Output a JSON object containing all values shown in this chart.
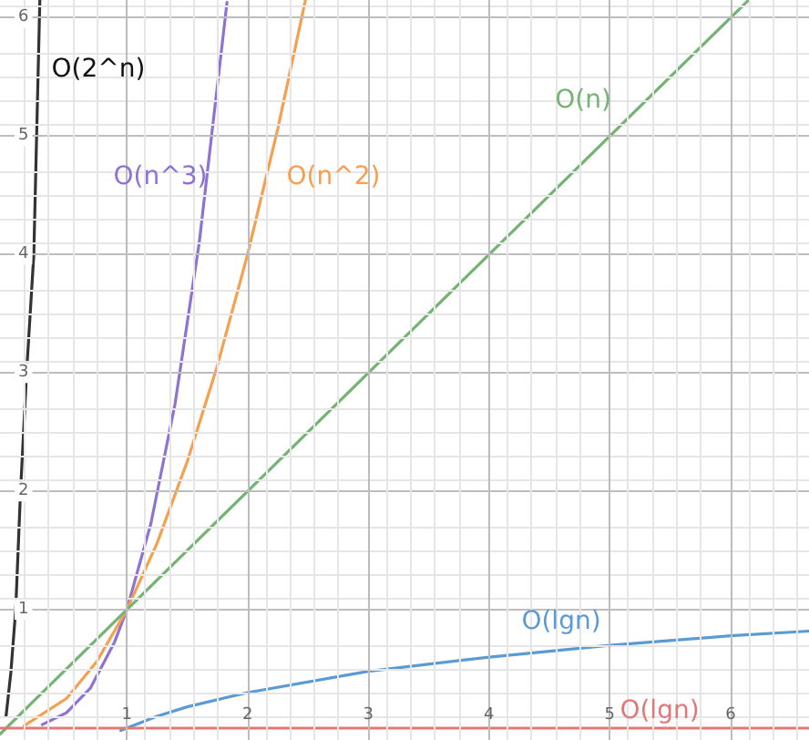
{
  "chart_data": {
    "type": "line",
    "xlim": [
      -0.05,
      6.65
    ],
    "ylim": [
      -0.1,
      6.15
    ],
    "xticks": [
      1,
      2,
      3,
      4,
      5,
      6
    ],
    "yticks": [
      1,
      2,
      3,
      4,
      5,
      6
    ],
    "grid": true,
    "marker": "none",
    "line_style": "solid",
    "series": [
      {
        "name": "O(2^n)",
        "color": "#333333",
        "x": [
          0,
          0.04,
          0.08,
          0.12,
          0.17,
          0.23,
          0.28
        ],
        "values": [
          0.1,
          0.47,
          1,
          2,
          3,
          4,
          6.15
        ]
      },
      {
        "name": "O(n^3)",
        "color": "#8e72d4",
        "x": [
          0.3,
          0.5,
          0.7,
          0.9,
          1,
          1.2,
          1.4,
          1.6,
          1.83
        ],
        "values": [
          0.03,
          0.13,
          0.34,
          0.73,
          1,
          1.73,
          2.74,
          4.1,
          6.13
        ]
      },
      {
        "name": "O(n^2)",
        "color": "#f5a04e",
        "x": [
          0.15,
          0.5,
          0.75,
          1,
          1.25,
          1.5,
          1.75,
          2,
          2.25,
          2.48
        ],
        "values": [
          0.02,
          0.25,
          0.56,
          1,
          1.56,
          2.25,
          3.06,
          4,
          5.06,
          6.15
        ]
      },
      {
        "name": "O(n)",
        "color": "#74b374",
        "x": [
          -0.05,
          6.15
        ],
        "values": [
          -0.05,
          6.15
        ]
      },
      {
        "name": "O(lgn)",
        "color": "#5b9bd5",
        "x": [
          0.95,
          1.25,
          1.5,
          2,
          3,
          4,
          5,
          6,
          6.65
        ],
        "values": [
          -0.02,
          0.1,
          0.18,
          0.3,
          0.48,
          0.6,
          0.7,
          0.78,
          0.82
        ]
      },
      {
        "name": "O(lgn)",
        "color": "#e07878",
        "x": [
          -0.05,
          6.65
        ],
        "values": [
          0,
          0
        ]
      }
    ]
  }
}
